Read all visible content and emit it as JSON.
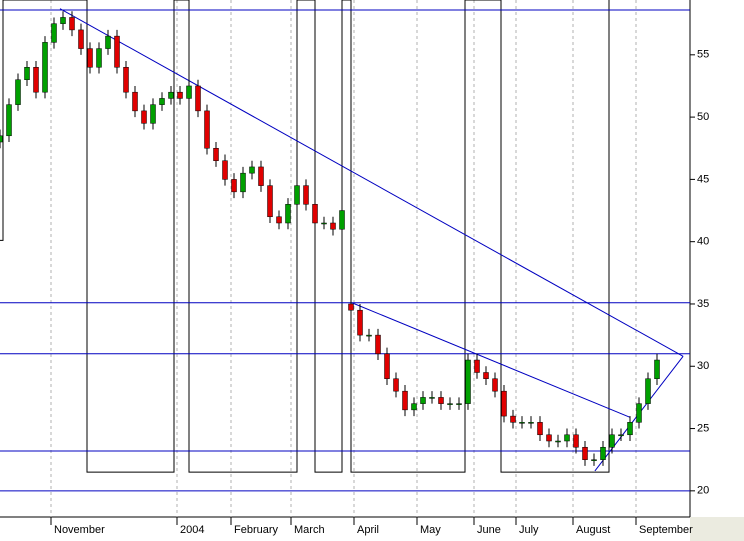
{
  "chart_data": {
    "type": "candlestick",
    "x": [
      0,
      3,
      6,
      9,
      12,
      15,
      18,
      21,
      24,
      27,
      30,
      33,
      36,
      39,
      42,
      45,
      48,
      51,
      54,
      57,
      60,
      63,
      66,
      69,
      72,
      75,
      78,
      81,
      84,
      87,
      90,
      93,
      96,
      99,
      102,
      105,
      108,
      111,
      114,
      117,
      120,
      123,
      126,
      129,
      132,
      135,
      138,
      141,
      144,
      147,
      150,
      153,
      156,
      159,
      162,
      165,
      168,
      171,
      174,
      177,
      180,
      183,
      186,
      189,
      192,
      195,
      198,
      201,
      204,
      207,
      210,
      213,
      216,
      219
    ],
    "open": [
      48,
      48.5,
      51,
      53,
      54,
      52,
      56,
      57.5,
      58,
      57,
      55.5,
      54,
      55.5,
      56.5,
      54,
      52,
      50.5,
      49.5,
      51,
      51.5,
      52,
      51.5,
      52.5,
      50.5,
      47.5,
      46.5,
      45,
      44,
      45.5,
      46,
      44.5,
      42,
      41.5,
      43,
      44.5,
      43,
      41.5,
      41.5,
      41,
      35,
      34.5,
      32.5,
      32.5,
      31,
      29,
      28,
      26.5,
      27,
      27.5,
      27.5,
      27,
      27,
      27,
      30.5,
      29.5,
      29,
      28,
      26,
      25.5,
      25.5,
      25.5,
      24.5,
      24,
      24,
      24.5,
      23.5,
      22.5,
      22.5,
      23.5,
      24.5,
      24.5,
      25.5,
      27,
      29
    ],
    "high": [
      49,
      51.5,
      53.5,
      54.5,
      54.5,
      56.5,
      58,
      58.5,
      58.5,
      57.5,
      56,
      56,
      57,
      57,
      54.5,
      52.5,
      51,
      51.5,
      52,
      52.5,
      52.5,
      53,
      53,
      51,
      48,
      47,
      45.5,
      46,
      46.5,
      46.5,
      45,
      42.5,
      43.5,
      45,
      45,
      43.5,
      42,
      42,
      43,
      35.5,
      35,
      33,
      33,
      31.5,
      29.5,
      28.5,
      27.5,
      28,
      28,
      28,
      27.5,
      27.5,
      31,
      31,
      30,
      29.5,
      28.5,
      26.5,
      26,
      26,
      26,
      25,
      24.5,
      25,
      25,
      24,
      23,
      24,
      25,
      25,
      26,
      27.5,
      29.5,
      31
    ],
    "low": [
      47.5,
      48,
      50.5,
      52.5,
      51.5,
      51.5,
      55.5,
      57,
      56.5,
      55,
      53.5,
      53.5,
      55,
      53.5,
      51.5,
      50,
      49,
      49,
      50.5,
      51,
      51,
      51,
      50,
      47,
      46,
      44.5,
      43.5,
      43.5,
      45,
      44,
      41.5,
      41,
      41,
      42.5,
      42.5,
      41,
      41,
      40.5,
      40.5,
      34,
      32,
      32,
      30.5,
      28.5,
      27.5,
      26,
      26,
      26.5,
      27,
      26.5,
      26.5,
      26.5,
      26.5,
      29,
      28.5,
      27.5,
      25.5,
      25,
      25,
      25,
      24,
      23.5,
      23.5,
      23.5,
      23,
      22,
      22,
      22,
      23,
      24,
      24,
      25,
      26.5,
      28.5
    ],
    "close": [
      48.5,
      51,
      53,
      54,
      52,
      56,
      57.5,
      58,
      57,
      55.5,
      54,
      55.5,
      56.5,
      54,
      52,
      50.5,
      49.5,
      51,
      51.5,
      52,
      51.5,
      52.5,
      50.5,
      47.5,
      46.5,
      45,
      44,
      45.5,
      46,
      44.5,
      42,
      41.5,
      43,
      44.5,
      43,
      41.5,
      41.5,
      41,
      42.5,
      34.5,
      32.5,
      32.5,
      31,
      29,
      28,
      26.5,
      27,
      27.5,
      27.5,
      27,
      27,
      27,
      30.5,
      29.5,
      29,
      28,
      26,
      25.5,
      25.5,
      25.5,
      24.5,
      24,
      24,
      24.5,
      23.5,
      22.5,
      22.5,
      23.5,
      24.5,
      24.5,
      25.5,
      27,
      29,
      30.5
    ],
    "up_color": "#00a000",
    "down_color": "#e00000",
    "xlim": [
      0,
      230
    ],
    "xticks": [
      {
        "value": 17,
        "label": "November"
      },
      {
        "value": 59,
        "label": "2004"
      },
      {
        "value": 77,
        "label": "February"
      },
      {
        "value": 97,
        "label": "March"
      },
      {
        "value": 118,
        "label": "April"
      },
      {
        "value": 139,
        "label": "May"
      },
      {
        "value": 158,
        "label": "June"
      },
      {
        "value": 172,
        "label": "July"
      },
      {
        "value": 191,
        "label": "August"
      },
      {
        "value": 212,
        "label": "September"
      }
    ],
    "ylim": [
      17.9,
      59.4
    ],
    "yticks": [
      20,
      25,
      30,
      35,
      40,
      45,
      50,
      55
    ],
    "grid": true,
    "levels": [
      58.6,
      35.1,
      31,
      23.2,
      20
    ],
    "level_color": "#0000c0",
    "trendlines": [
      [
        20,
        58.7,
        227.7,
        30.8
      ],
      [
        117.3,
        35.1,
        210,
        25.9
      ],
      [
        198.3,
        21.6,
        227.7,
        30.8
      ]
    ],
    "indicator": {
      "color": "#000000",
      "x": [
        0,
        1,
        1,
        29,
        29,
        58,
        58,
        63,
        63,
        99,
        99,
        105,
        105,
        114,
        114,
        117,
        117,
        155,
        155,
        167,
        167,
        203,
        203
      ],
      "values": [
        40.1,
        40.1,
        59.4,
        59.4,
        21.5,
        21.5,
        59.4,
        59.4,
        21.5,
        21.5,
        59.4,
        59.4,
        21.5,
        21.5,
        59.4,
        59.4,
        21.5,
        21.5,
        59.4,
        59.4,
        21.5,
        21.5,
        59.4
      ]
    }
  }
}
